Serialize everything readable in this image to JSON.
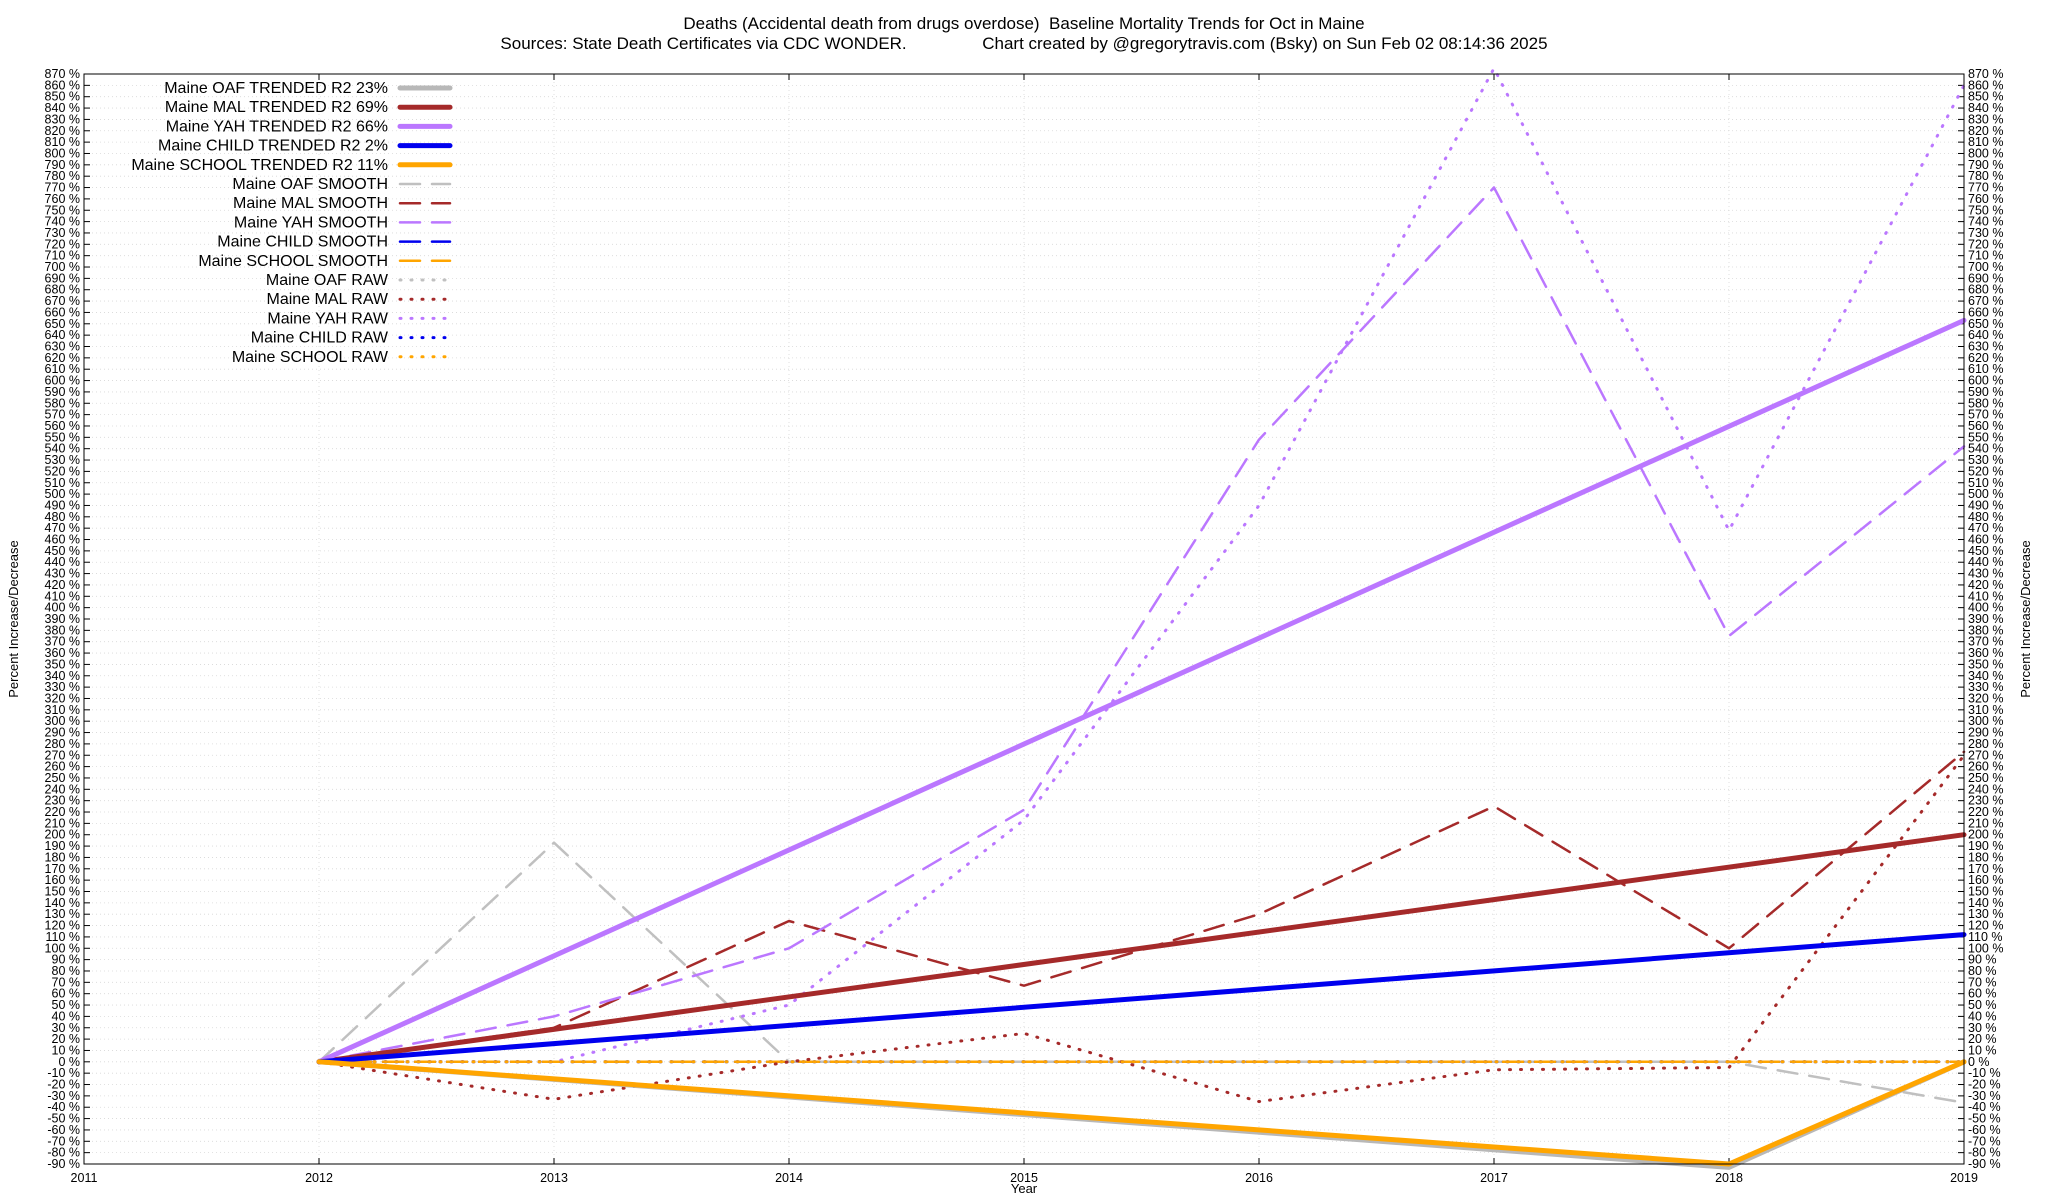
{
  "title_line1": "Deaths (Accidental death from drugs overdose)  Baseline Mortality Trends for Oct in Maine",
  "title_line2": "Sources: State Death Certificates via CDC WONDER.                Chart created by @gregorytravis.com (Bsky) on Sun Feb 02 08:14:36 2025",
  "chart_data": {
    "type": "line",
    "title": "Deaths (Accidental death from drugs overdose)  Baseline Mortality Trends for Oct in Maine",
    "subtitle": "Sources: State Death Certificates via CDC WONDER.                Chart created by @gregorytravis.com (Bsky) on Sun Feb 02 08:14:36 2025",
    "xlabel": "Year",
    "ylabel": "Percent Increase/Decrease",
    "y2label": "Percent Increase/Decrease",
    "xlim": [
      2011,
      2019
    ],
    "ylim": [
      -90,
      870
    ],
    "x_ticks": [
      2011,
      2012,
      2013,
      2014,
      2015,
      2016,
      2017,
      2018,
      2019
    ],
    "y_tick_step": 10,
    "y_tick_suffix": " %",
    "grid": true,
    "legend_position": "top-left",
    "series": [
      {
        "name": "Maine OAF TRENDED R2  23%",
        "style": "solid",
        "color": "#b8b8b8",
        "x": [
          2012,
          2018,
          2019
        ],
        "values": [
          0,
          -93,
          0
        ]
      },
      {
        "name": "Maine MAL TRENDED R2  69%",
        "style": "solid",
        "color": "#a52a2a",
        "x": [
          2012,
          2019
        ],
        "values": [
          0,
          200
        ]
      },
      {
        "name": "Maine YAH TRENDED R2  66%",
        "style": "solid",
        "color": "#bb77ff",
        "x": [
          2012,
          2019
        ],
        "values": [
          0,
          653
        ]
      },
      {
        "name": "Maine CHILD TRENDED R2  2%",
        "style": "solid",
        "color": "#0000ee",
        "x": [
          2012,
          2019
        ],
        "values": [
          0,
          112
        ]
      },
      {
        "name": "Maine SCHOOL TRENDED R2  11%",
        "style": "solid",
        "color": "#ffa500",
        "x": [
          2012,
          2018,
          2019
        ],
        "values": [
          0,
          -90,
          0
        ]
      },
      {
        "name": "Maine OAF SMOOTH",
        "style": "dashed",
        "color": "#c0c0c0",
        "x": [
          2012,
          2013,
          2014,
          2015,
          2016,
          2017,
          2018,
          2019
        ],
        "values": [
          0,
          193,
          0,
          0,
          0,
          0,
          0,
          -36
        ]
      },
      {
        "name": "Maine MAL SMOOTH",
        "style": "dashed",
        "color": "#a52a2a",
        "x": [
          2012,
          2013,
          2014,
          2015,
          2016,
          2017,
          2018,
          2019
        ],
        "values": [
          0,
          30,
          124,
          67,
          130,
          225,
          100,
          273
        ]
      },
      {
        "name": "Maine YAH SMOOTH",
        "style": "dashed",
        "color": "#bb77ff",
        "x": [
          2012,
          2013,
          2014,
          2015,
          2016,
          2017,
          2018,
          2019
        ],
        "values": [
          0,
          40,
          100,
          222,
          548,
          770,
          375,
          542
        ]
      },
      {
        "name": "Maine CHILD SMOOTH",
        "style": "dashed",
        "color": "#0000ee",
        "x": [
          2012,
          2013,
          2014,
          2015,
          2016,
          2017,
          2018,
          2019
        ],
        "values": [
          0,
          0,
          0,
          0,
          0,
          0,
          0,
          0
        ]
      },
      {
        "name": "Maine SCHOOL SMOOTH",
        "style": "dashed",
        "color": "#ffa500",
        "x": [
          2012,
          2013,
          2014,
          2015,
          2016,
          2017,
          2018,
          2019
        ],
        "values": [
          0,
          0,
          0,
          0,
          0,
          0,
          0,
          0
        ]
      },
      {
        "name": "Maine OAF RAW",
        "style": "dotted",
        "color": "#c0c0c0",
        "x": [
          2012,
          2013,
          2014,
          2015,
          2016,
          2017,
          2018,
          2019
        ],
        "values": [
          0,
          0,
          0,
          0,
          0,
          0,
          0,
          0
        ]
      },
      {
        "name": "Maine MAL RAW",
        "style": "dotted",
        "color": "#a52a2a",
        "x": [
          2012,
          2013,
          2014,
          2015,
          2016,
          2017,
          2018,
          2019
        ],
        "values": [
          0,
          -33,
          0,
          25,
          -35,
          -7,
          -5,
          270
        ]
      },
      {
        "name": "Maine YAH RAW",
        "style": "dotted",
        "color": "#bb77ff",
        "x": [
          2012,
          2013,
          2014,
          2015,
          2016,
          2017,
          2018,
          2019
        ],
        "values": [
          0,
          0,
          50,
          213,
          490,
          875,
          468,
          860
        ]
      },
      {
        "name": "Maine CHILD RAW",
        "style": "dotted",
        "color": "#0000ee",
        "x": [
          2012,
          2013,
          2014,
          2015,
          2016,
          2017,
          2018,
          2019
        ],
        "values": [
          0,
          0,
          0,
          0,
          0,
          0,
          0,
          0
        ]
      },
      {
        "name": "Maine SCHOOL RAW",
        "style": "dotted",
        "color": "#ffa500",
        "x": [
          2012,
          2013,
          2014,
          2015,
          2016,
          2017,
          2018,
          2019
        ],
        "values": [
          0,
          0,
          0,
          0,
          0,
          0,
          0,
          0
        ]
      }
    ]
  }
}
